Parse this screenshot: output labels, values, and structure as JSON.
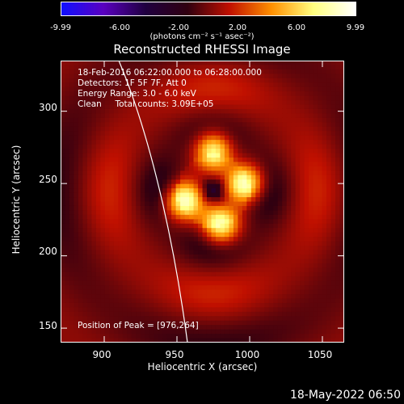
{
  "colorbar": {
    "ticks": [
      "-9.99",
      "-6.00",
      "-2.00",
      "2.00",
      "6.00",
      "9.99"
    ],
    "unit": "(photons cm⁻² s⁻¹ asec⁻²)",
    "stops": [
      "#1010ff",
      "#5a00c0",
      "#200040",
      "#300010",
      "#c01000",
      "#ff9000",
      "#ffff80",
      "#ffffff"
    ]
  },
  "chart_data": {
    "type": "heatmap",
    "title": "Reconstructed RHESSI Image",
    "xlabel": "Heliocentric X (arcsec)",
    "ylabel": "Heliocentric Y (arcsec)",
    "xlim": [
      870,
      1065
    ],
    "ylim": [
      140,
      335
    ],
    "x_ticks": [
      "900",
      "950",
      "1000",
      "1050"
    ],
    "y_ticks": [
      "150",
      "200",
      "250",
      "300"
    ],
    "color_range": [
      -9.99,
      9.99
    ],
    "annotations": [
      "18-Feb-2016 06:22:00.000 to 06:28:00.000",
      "Detectors: 1F 5F 7F, Att 0",
      "Energy Range: 3.0 - 6.0 keV",
      "Clean     Total counts: 3.09E+05",
      "Position of Peak = [976,264]"
    ],
    "peak": [
      976,
      264
    ]
  },
  "footer": {
    "date": "18-May-2022 06:50"
  }
}
